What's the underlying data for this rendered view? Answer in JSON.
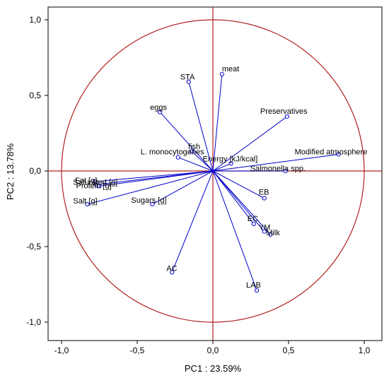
{
  "chart_data": {
    "type": "scatter",
    "subtype": "pca-correlation-circle",
    "title": "",
    "xlabel": "PC1 : 23.59%",
    "ylabel": "PC2 : 13.78%",
    "xlim": [
      -1.0,
      1.0
    ],
    "ylim": [
      -1.0,
      1.0
    ],
    "xticks": [
      "-1,0",
      "-0,5",
      "0,0",
      "0,5",
      "1,0"
    ],
    "yticks": [
      "1,0",
      "0,5",
      "0,0",
      "-0,5",
      "-1,0"
    ],
    "grid": false,
    "circle_radius": 1.0,
    "colors": {
      "vectors": "#0000cc",
      "circle": "#b22222",
      "axes": "#b22222",
      "frame": "#000000"
    },
    "variables": [
      {
        "label": "meat",
        "x": 0.06,
        "y": 0.64
      },
      {
        "label": "STA",
        "x": -0.16,
        "y": 0.59
      },
      {
        "label": "eggs",
        "x": -0.35,
        "y": 0.39
      },
      {
        "label": "Preservatives",
        "x": 0.49,
        "y": 0.36
      },
      {
        "label": "fish",
        "x": -0.14,
        "y": 0.13
      },
      {
        "label": "L. monocytogenes",
        "x": -0.23,
        "y": 0.09
      },
      {
        "label": "Energy [kJ/kcal]",
        "x": 0.12,
        "y": 0.05
      },
      {
        "label": "Modified atmosphere",
        "x": 0.83,
        "y": 0.11
      },
      {
        "label": "Salmonella spp.",
        "x": 0.48,
        "y": 0.0
      },
      {
        "label": "Fat [g]",
        "x": -0.78,
        "y": -0.07
      },
      {
        "label": "Saturated [g]",
        "x": -0.77,
        "y": -0.09
      },
      {
        "label": "Protein [g]",
        "x": -0.75,
        "y": -0.1
      },
      {
        "label": "Salt [g]",
        "x": -0.83,
        "y": -0.22
      },
      {
        "label": "Sugars [g]",
        "x": -0.4,
        "y": -0.22
      },
      {
        "label": "EB",
        "x": 0.34,
        "y": -0.18
      },
      {
        "label": "EC",
        "x": 0.27,
        "y": -0.35
      },
      {
        "label": "YM",
        "x": 0.34,
        "y": -0.4
      },
      {
        "label": "Milk",
        "x": 0.38,
        "y": -0.42
      },
      {
        "label": "AC",
        "x": -0.27,
        "y": -0.67
      },
      {
        "label": "LAB",
        "x": 0.29,
        "y": -0.79
      }
    ]
  }
}
